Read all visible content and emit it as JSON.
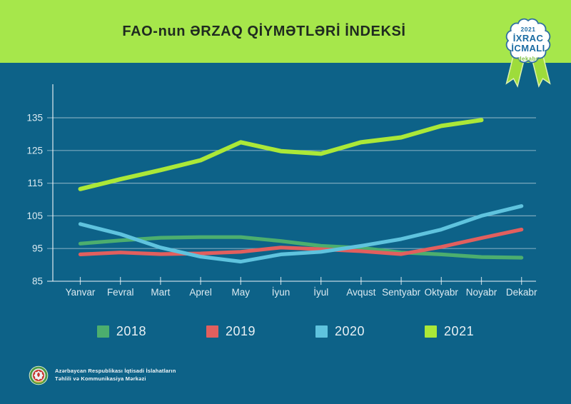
{
  "header": {
    "title": "FAO-nun ƏRZAQ QİYMƏTLƏRİ İNDEKSİ"
  },
  "badge": {
    "year": "2021",
    "line1": "İXRAC",
    "line2": "İCMALI",
    "month": "dekabr"
  },
  "footer": {
    "org_line1": "Azərbaycan Respublikası İqtisadi İslahatların",
    "org_line2": "Təhlili və Kommunikasiya Mərkəzi"
  },
  "colors": {
    "background": "#0d6288",
    "header_bg": "#a6e74b",
    "grid": "#ffffff",
    "axis_text": "#dcebf2",
    "badge_text_blue": "#1b6ca3",
    "badge_month_green": "#7fc143",
    "ribbon_green": "#9edc3b"
  },
  "chart_data": {
    "type": "line",
    "title": "FAO-nun ƏRZAQ QİYMƏTLƏRİ İNDEKSİ",
    "categories": [
      "Yanvar",
      "Fevral",
      "Mart",
      "Aprel",
      "May",
      "İyun",
      "İyul",
      "Avqust",
      "Sentyabr",
      "Oktyabr",
      "Noyabr",
      "Dekabr"
    ],
    "series": [
      {
        "name": "2018",
        "color": "#4cae6e",
        "values": [
          96.5,
          97.5,
          98.3,
          98.5,
          98.5,
          97.3,
          95.8,
          95.2,
          93.8,
          93.2,
          92.4,
          92.2
        ]
      },
      {
        "name": "2019",
        "color": "#e25f5e",
        "values": [
          93.2,
          93.8,
          93.3,
          93.5,
          94.0,
          95.3,
          94.8,
          94.2,
          93.3,
          95.5,
          98.2,
          100.8
        ]
      },
      {
        "name": "2020",
        "color": "#5fc3de",
        "values": [
          102.5,
          99.4,
          95.3,
          92.5,
          91.0,
          93.2,
          94.0,
          95.8,
          97.9,
          100.8,
          105.0,
          108.0
        ]
      },
      {
        "name": "2021",
        "color": "#abe838",
        "values": [
          113.2,
          116.2,
          119.0,
          122.0,
          127.5,
          124.8,
          124.0,
          127.5,
          129.0,
          132.5,
          134.3,
          null
        ]
      }
    ],
    "xlabel": "",
    "ylabel": "",
    "ylim": [
      85,
      135
    ],
    "ytick_step": 10,
    "grid": true,
    "legend_position": "bottom"
  }
}
